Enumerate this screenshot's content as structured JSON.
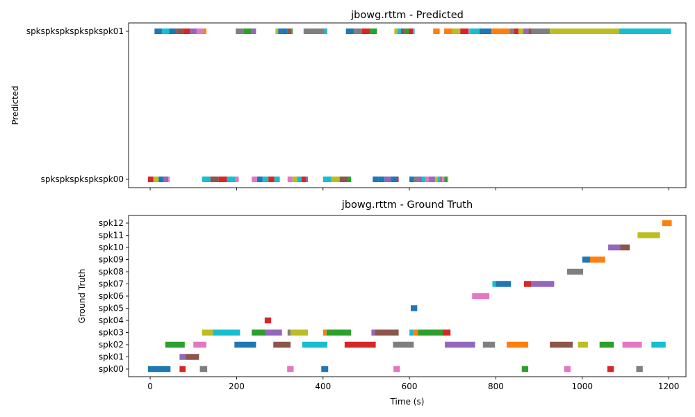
{
  "chart_data": [
    {
      "type": "timeline",
      "title": "jbowg.rttm - Predicted",
      "xlabel": "",
      "ylabel": "Predicted",
      "xlim": [
        -50,
        1240
      ],
      "xticks": [
        0,
        200,
        400,
        600,
        800,
        1000,
        1200
      ],
      "show_xtick_labels": false,
      "grid": false,
      "speakers": [
        "spkspkspkspkspk00",
        "spkspkspkspkspkspk01"
      ],
      "segments": [
        {
          "speaker": "spkspkspkspkspkspk01",
          "start": 10,
          "end": 130,
          "color": "mixed"
        },
        {
          "speaker": "spkspkspkspkspkspk01",
          "start": 198,
          "end": 245,
          "color": "mixed"
        },
        {
          "speaker": "spkspkspkspkspkspk01",
          "start": 290,
          "end": 330,
          "color": "mixed"
        },
        {
          "speaker": "spkspkspkspkspkspk01",
          "start": 355,
          "end": 410,
          "color": "mixed"
        },
        {
          "speaker": "spkspkspkspkspkspk01",
          "start": 453,
          "end": 525,
          "color": "mixed"
        },
        {
          "speaker": "spkspkspkspkspkspk01",
          "start": 565,
          "end": 612,
          "color": "mixed"
        },
        {
          "speaker": "spkspkspkspkspkspk01",
          "start": 655,
          "end": 670,
          "color": "#ff7f0e"
        },
        {
          "speaker": "spkspkspkspkspkspk01",
          "start": 680,
          "end": 740,
          "color": "mixed"
        },
        {
          "speaker": "spkspkspkspkspkspk01",
          "start": 740,
          "end": 762,
          "color": "#17becf"
        },
        {
          "speaker": "spkspkspkspkspkspk01",
          "start": 762,
          "end": 790,
          "color": "#1f77b4"
        },
        {
          "speaker": "spkspkspkspkspkspk01",
          "start": 790,
          "end": 832,
          "color": "#ff7f0e"
        },
        {
          "speaker": "spkspkspkspkspkspk01",
          "start": 832,
          "end": 882,
          "color": "mixed"
        },
        {
          "speaker": "spkspkspkspkspkspk01",
          "start": 882,
          "end": 925,
          "color": "#7f7f7f"
        },
        {
          "speaker": "spkspkspkspkspkspk01",
          "start": 925,
          "end": 1085,
          "color": "#bcbd22"
        },
        {
          "speaker": "spkspkspkspkspkspk01",
          "start": 1085,
          "end": 1205,
          "color": "#17becf"
        },
        {
          "speaker": "spkspkspkspkspk00",
          "start": -5,
          "end": 45,
          "color": "mixed"
        },
        {
          "speaker": "spkspkspkspkspk00",
          "start": 120,
          "end": 205,
          "color": "mixed"
        },
        {
          "speaker": "spkspkspkspkspk00",
          "start": 235,
          "end": 300,
          "color": "mixed"
        },
        {
          "speaker": "spkspkspkspkspk00",
          "start": 318,
          "end": 365,
          "color": "mixed"
        },
        {
          "speaker": "spkspkspkspkspk00",
          "start": 400,
          "end": 465,
          "color": "mixed"
        },
        {
          "speaker": "spkspkspkspkspk00",
          "start": 515,
          "end": 575,
          "color": "mixed"
        },
        {
          "speaker": "spkspkspkspkspk00",
          "start": 600,
          "end": 690,
          "color": "mixed"
        }
      ]
    },
    {
      "type": "timeline",
      "title": "jbowg.rttm - Ground Truth",
      "xlabel": "Time (s)",
      "ylabel": "Ground Truth",
      "xlim": [
        -50,
        1240
      ],
      "xticks": [
        0,
        200,
        400,
        600,
        800,
        1000,
        1200
      ],
      "show_xtick_labels": true,
      "grid": false,
      "speakers": [
        "spk00",
        "spk01",
        "spk02",
        "spk03",
        "spk04",
        "spk05",
        "spk06",
        "spk07",
        "spk08",
        "spk09",
        "spk10",
        "spk11",
        "spk12"
      ],
      "segments": [
        {
          "speaker": "spk00",
          "start": -5,
          "end": 47,
          "color": "#1f77b4"
        },
        {
          "speaker": "spk00",
          "start": 68,
          "end": 82,
          "color": "#d62728"
        },
        {
          "speaker": "spk00",
          "start": 115,
          "end": 132,
          "color": "#7f7f7f"
        },
        {
          "speaker": "spk00",
          "start": 317,
          "end": 332,
          "color": "#e377c2"
        },
        {
          "speaker": "spk00",
          "start": 396,
          "end": 412,
          "color": "#1f77b4"
        },
        {
          "speaker": "spk00",
          "start": 563,
          "end": 578,
          "color": "#e377c2"
        },
        {
          "speaker": "spk00",
          "start": 860,
          "end": 875,
          "color": "#2ca02c"
        },
        {
          "speaker": "spk00",
          "start": 958,
          "end": 973,
          "color": "#e377c2"
        },
        {
          "speaker": "spk00",
          "start": 1058,
          "end": 1073,
          "color": "#d62728"
        },
        {
          "speaker": "spk00",
          "start": 1125,
          "end": 1140,
          "color": "#7f7f7f"
        },
        {
          "speaker": "spk01",
          "start": 68,
          "end": 82,
          "color": "#9467bd"
        },
        {
          "speaker": "spk01",
          "start": 82,
          "end": 113,
          "color": "#8c564b"
        },
        {
          "speaker": "spk02",
          "start": 35,
          "end": 80,
          "color": "#2ca02c"
        },
        {
          "speaker": "spk02",
          "start": 100,
          "end": 130,
          "color": "#e377c2"
        },
        {
          "speaker": "spk02",
          "start": 195,
          "end": 245,
          "color": "#1f77b4"
        },
        {
          "speaker": "spk02",
          "start": 285,
          "end": 325,
          "color": "#8c564b"
        },
        {
          "speaker": "spk02",
          "start": 352,
          "end": 410,
          "color": "#17becf"
        },
        {
          "speaker": "spk02",
          "start": 450,
          "end": 522,
          "color": "#d62728"
        },
        {
          "speaker": "spk02",
          "start": 562,
          "end": 610,
          "color": "#7f7f7f"
        },
        {
          "speaker": "spk02",
          "start": 682,
          "end": 752,
          "color": "#9467bd"
        },
        {
          "speaker": "spk02",
          "start": 770,
          "end": 798,
          "color": "#7f7f7f"
        },
        {
          "speaker": "spk02",
          "start": 825,
          "end": 875,
          "color": "#ff7f0e"
        },
        {
          "speaker": "spk02",
          "start": 925,
          "end": 978,
          "color": "#8c564b"
        },
        {
          "speaker": "spk02",
          "start": 990,
          "end": 1013,
          "color": "#bcbd22"
        },
        {
          "speaker": "spk02",
          "start": 1040,
          "end": 1073,
          "color": "#2ca02c"
        },
        {
          "speaker": "spk02",
          "start": 1093,
          "end": 1138,
          "color": "#e377c2"
        },
        {
          "speaker": "spk02",
          "start": 1160,
          "end": 1193,
          "color": "#17becf"
        },
        {
          "speaker": "spk03",
          "start": 120,
          "end": 145,
          "color": "#bcbd22"
        },
        {
          "speaker": "spk03",
          "start": 145,
          "end": 208,
          "color": "#17becf"
        },
        {
          "speaker": "spk03",
          "start": 235,
          "end": 268,
          "color": "#2ca02c"
        },
        {
          "speaker": "spk03",
          "start": 268,
          "end": 305,
          "color": "#9467bd"
        },
        {
          "speaker": "spk03",
          "start": 318,
          "end": 325,
          "color": "#7f7f7f"
        },
        {
          "speaker": "spk03",
          "start": 325,
          "end": 365,
          "color": "#bcbd22"
        },
        {
          "speaker": "spk03",
          "start": 400,
          "end": 408,
          "color": "#ff7f0e"
        },
        {
          "speaker": "spk03",
          "start": 408,
          "end": 465,
          "color": "#2ca02c"
        },
        {
          "speaker": "spk03",
          "start": 512,
          "end": 520,
          "color": "#9467bd"
        },
        {
          "speaker": "spk03",
          "start": 520,
          "end": 575,
          "color": "#8c564b"
        },
        {
          "speaker": "spk03",
          "start": 600,
          "end": 608,
          "color": "#17becf"
        },
        {
          "speaker": "spk03",
          "start": 608,
          "end": 620,
          "color": "#ff7f0e"
        },
        {
          "speaker": "spk03",
          "start": 620,
          "end": 677,
          "color": "#2ca02c"
        },
        {
          "speaker": "spk03",
          "start": 677,
          "end": 695,
          "color": "#d62728"
        },
        {
          "speaker": "spk04",
          "start": 265,
          "end": 280,
          "color": "#d62728"
        },
        {
          "speaker": "spk05",
          "start": 603,
          "end": 618,
          "color": "#1f77b4"
        },
        {
          "speaker": "spk06",
          "start": 745,
          "end": 785,
          "color": "#e377c2"
        },
        {
          "speaker": "spk07",
          "start": 792,
          "end": 800,
          "color": "#17becf"
        },
        {
          "speaker": "spk07",
          "start": 800,
          "end": 835,
          "color": "#1f77b4"
        },
        {
          "speaker": "spk07",
          "start": 865,
          "end": 882,
          "color": "#d62728"
        },
        {
          "speaker": "spk07",
          "start": 882,
          "end": 935,
          "color": "#9467bd"
        },
        {
          "speaker": "spk08",
          "start": 965,
          "end": 1002,
          "color": "#7f7f7f"
        },
        {
          "speaker": "spk09",
          "start": 1000,
          "end": 1018,
          "color": "#1f77b4"
        },
        {
          "speaker": "spk09",
          "start": 1018,
          "end": 1053,
          "color": "#ff7f0e"
        },
        {
          "speaker": "spk10",
          "start": 1060,
          "end": 1088,
          "color": "#9467bd"
        },
        {
          "speaker": "spk10",
          "start": 1088,
          "end": 1110,
          "color": "#8c564b"
        },
        {
          "speaker": "spk11",
          "start": 1128,
          "end": 1180,
          "color": "#bcbd22"
        },
        {
          "speaker": "spk12",
          "start": 1185,
          "end": 1207,
          "color": "#ff7f0e"
        }
      ]
    }
  ],
  "palette": [
    "#1f77b4",
    "#ff7f0e",
    "#2ca02c",
    "#d62728",
    "#9467bd",
    "#8c564b",
    "#e377c2",
    "#7f7f7f",
    "#bcbd22",
    "#17becf"
  ]
}
